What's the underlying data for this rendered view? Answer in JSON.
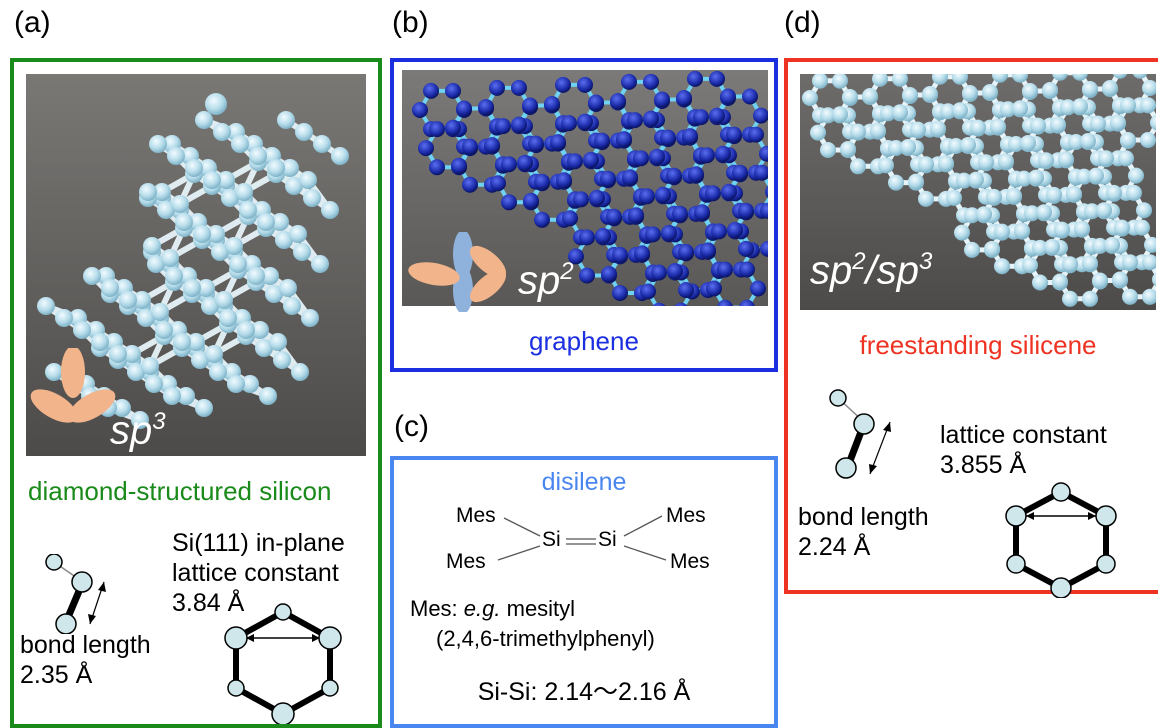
{
  "panels": {
    "a": {
      "label": "(a)",
      "caption": "diamond-structured silicon",
      "sp_base": "sp",
      "sp_exp": "3",
      "bond_label": "bond length",
      "bond_value": "2.35 Å",
      "lattice_line1": "Si(111) in-plane",
      "lattice_line2": "lattice constant",
      "lattice_value": "3.84 Å",
      "border_color": "#1a8a1a"
    },
    "b": {
      "label": "(b)",
      "caption": "graphene",
      "sp_base": "sp",
      "sp_exp": "2",
      "border_color": "#1c2fe0"
    },
    "c": {
      "label": "(c)",
      "title": "disilene",
      "mes_tl": "Mes",
      "mes_tr": "Mes",
      "mes_bl": "Mes",
      "mes_br": "Mes",
      "si_left": "Si",
      "si_right": "Si",
      "mes_def_prefix": "Mes: ",
      "mes_def_eg": "e.g.",
      "mes_def_name": " mesityl",
      "mes_def_iupac": "(2,4,6-trimethylphenyl)",
      "sisi": "Si-Si: 2.14～2.16 Å",
      "border_color": "#4a86f0"
    },
    "d": {
      "label": "(d)",
      "caption": "freestanding silicene",
      "sp_a_base": "sp",
      "sp_a_exp": "2",
      "sp_sep": "/",
      "sp_b_base": "sp",
      "sp_b_exp": "3",
      "bond_label": "bond length",
      "bond_value": "2.24 Å",
      "lattice_line1": "lattice constant",
      "lattice_value": "3.855 Å",
      "border_color": "#ee3322"
    }
  },
  "colors": {
    "orbital": "#f2b48a",
    "orbital_blue": "#8fb2dc",
    "atom_fill": "#cfe6ea",
    "photo_bg": "#5a5856",
    "glass_atom": "#bfe3ef",
    "graphene_atom": "#1a2aa8",
    "graphene_bond": "#6fd2f2"
  },
  "icons": [
    "orbital-sp3-icon",
    "orbital-sp2-icon",
    "bond-icon",
    "hexagon-ring-icon"
  ]
}
